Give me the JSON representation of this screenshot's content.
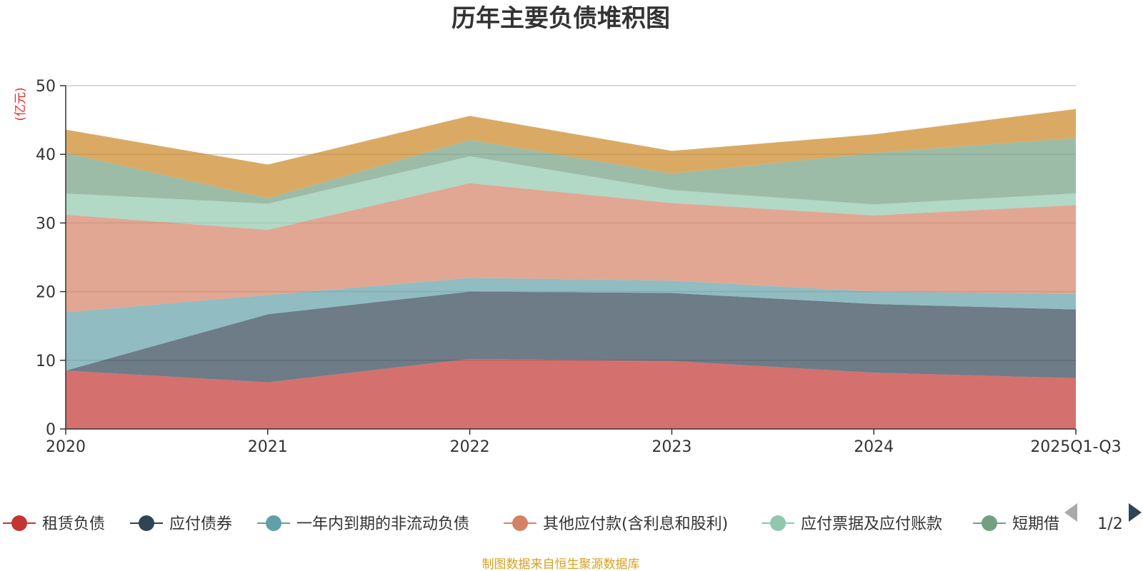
{
  "chart_data": {
    "type": "area",
    "stacked": true,
    "title": "历年主要负债堆积图",
    "unit_label": "(亿元)",
    "xlabel": "",
    "ylabel": "(亿元)",
    "categories": [
      "2020",
      "2021",
      "2022",
      "2023",
      "2024",
      "2025Q1-Q3"
    ],
    "ylim": [
      0,
      50
    ],
    "yticks": [
      0,
      10,
      20,
      30,
      40,
      50
    ],
    "grid": true,
    "legend_position": "bottom",
    "series": [
      {
        "name": "租赁负债",
        "color": "#c23531",
        "values": [
          8.5,
          6.8,
          10.2,
          9.9,
          8.2,
          7.4
        ]
      },
      {
        "name": "应付债券",
        "color": "#2f4554",
        "values": [
          0,
          9.9,
          9.8,
          9.9,
          10.0,
          10.0
        ]
      },
      {
        "name": "一年内到期的非流动负债",
        "color": "#61a0a8",
        "values": [
          8.5,
          2.8,
          2.0,
          1.8,
          1.8,
          2.3
        ]
      },
      {
        "name": "其他应付款(含利息和股利)",
        "color": "#d48265",
        "values": [
          14.2,
          9.5,
          13.8,
          11.3,
          11.1,
          12.9
        ]
      },
      {
        "name": "应付票据及应付账款",
        "color": "#91c7ae",
        "values": [
          3.1,
          3.8,
          3.9,
          1.9,
          1.6,
          1.7
        ]
      },
      {
        "name": "短期借款",
        "color": "#749f83",
        "values": [
          5.9,
          0.8,
          2.4,
          2.4,
          7.5,
          8.1
        ]
      },
      {
        "name": "",
        "color": "#ca8622",
        "values": [
          3.4,
          4.9,
          3.5,
          3.3,
          2.7,
          4.2
        ]
      }
    ],
    "legend_visible": [
      "租赁负债",
      "应付债券",
      "一年内到期的非流动负债",
      "其他应付款(含利息和股利)",
      "应付票据及应付账款",
      "短期借"
    ],
    "legend_page": "1/2",
    "source_note": "制图数据来自恒生聚源数据库"
  }
}
